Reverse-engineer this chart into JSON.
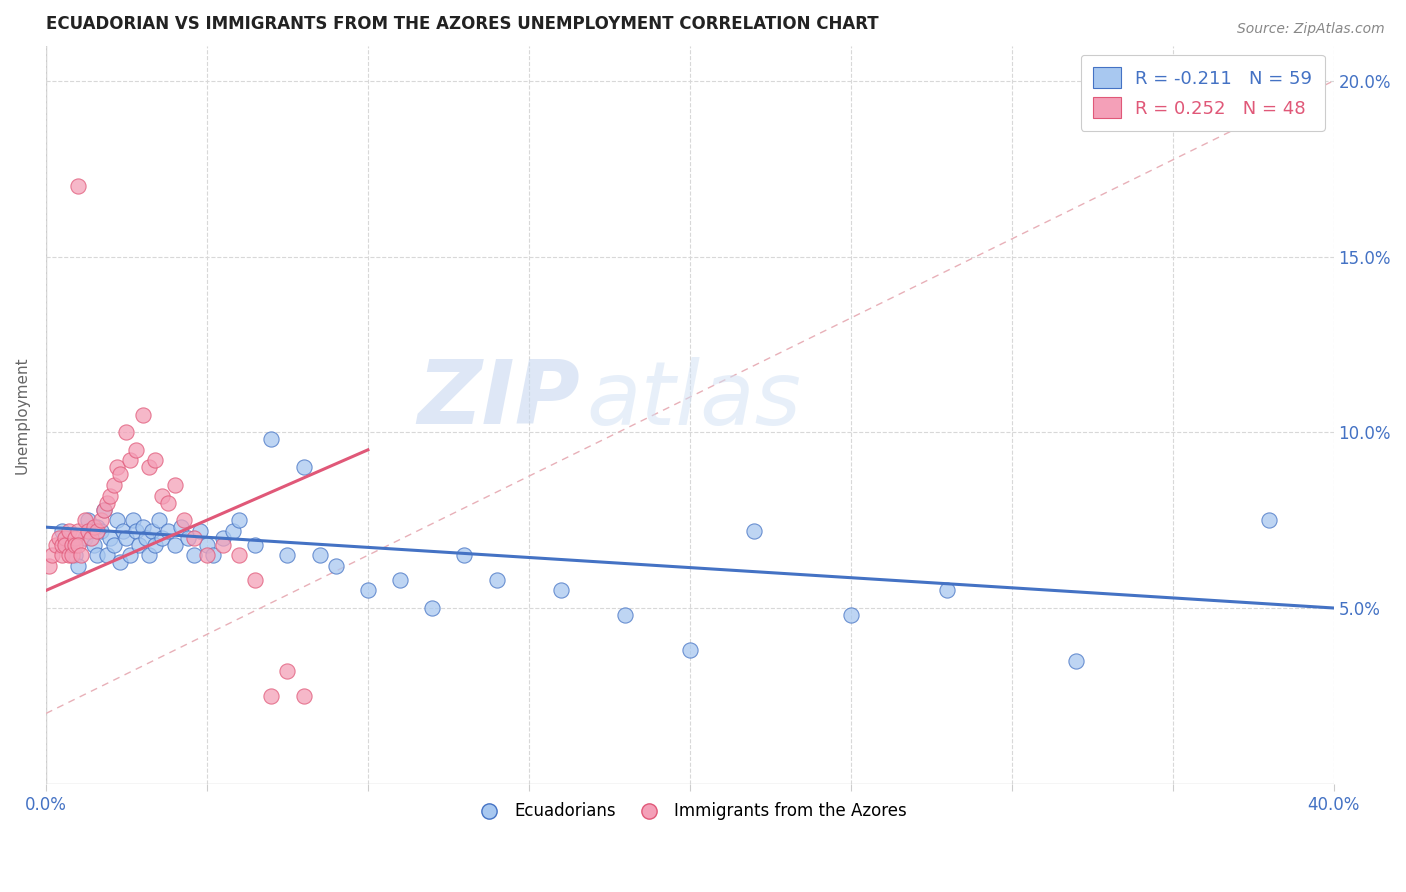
{
  "title": "ECUADORIAN VS IMMIGRANTS FROM THE AZORES UNEMPLOYMENT CORRELATION CHART",
  "source": "Source: ZipAtlas.com",
  "ylabel": "Unemployment",
  "legend_entries": [
    {
      "label": "R = -0.211   N = 59",
      "color": "#a8c8f0"
    },
    {
      "label": "R = 0.252   N = 48",
      "color": "#f4a0b8"
    }
  ],
  "blue_scatter_x": [
    0.005,
    0.007,
    0.009,
    0.01,
    0.012,
    0.013,
    0.015,
    0.016,
    0.016,
    0.017,
    0.018,
    0.019,
    0.02,
    0.021,
    0.022,
    0.023,
    0.024,
    0.025,
    0.026,
    0.027,
    0.028,
    0.029,
    0.03,
    0.031,
    0.032,
    0.033,
    0.034,
    0.035,
    0.036,
    0.038,
    0.04,
    0.042,
    0.044,
    0.046,
    0.048,
    0.05,
    0.052,
    0.055,
    0.058,
    0.06,
    0.065,
    0.07,
    0.075,
    0.08,
    0.085,
    0.09,
    0.1,
    0.11,
    0.12,
    0.13,
    0.14,
    0.16,
    0.18,
    0.2,
    0.22,
    0.25,
    0.28,
    0.32,
    0.38
  ],
  "blue_scatter_y": [
    0.072,
    0.068,
    0.065,
    0.062,
    0.07,
    0.075,
    0.068,
    0.073,
    0.065,
    0.072,
    0.078,
    0.065,
    0.07,
    0.068,
    0.075,
    0.063,
    0.072,
    0.07,
    0.065,
    0.075,
    0.072,
    0.068,
    0.073,
    0.07,
    0.065,
    0.072,
    0.068,
    0.075,
    0.07,
    0.072,
    0.068,
    0.073,
    0.07,
    0.065,
    0.072,
    0.068,
    0.065,
    0.07,
    0.072,
    0.075,
    0.068,
    0.098,
    0.065,
    0.09,
    0.065,
    0.062,
    0.055,
    0.058,
    0.05,
    0.065,
    0.058,
    0.055,
    0.048,
    0.038,
    0.072,
    0.048,
    0.055,
    0.035,
    0.075
  ],
  "pink_scatter_x": [
    0.001,
    0.002,
    0.003,
    0.004,
    0.005,
    0.005,
    0.006,
    0.006,
    0.007,
    0.007,
    0.008,
    0.008,
    0.009,
    0.009,
    0.01,
    0.01,
    0.011,
    0.012,
    0.013,
    0.014,
    0.015,
    0.016,
    0.017,
    0.018,
    0.019,
    0.02,
    0.021,
    0.022,
    0.023,
    0.025,
    0.026,
    0.028,
    0.03,
    0.032,
    0.034,
    0.036,
    0.038,
    0.04,
    0.043,
    0.046,
    0.05,
    0.055,
    0.06,
    0.065,
    0.07,
    0.075,
    0.08,
    0.01
  ],
  "pink_scatter_y": [
    0.062,
    0.065,
    0.068,
    0.07,
    0.065,
    0.068,
    0.07,
    0.068,
    0.065,
    0.072,
    0.068,
    0.065,
    0.07,
    0.068,
    0.072,
    0.068,
    0.065,
    0.075,
    0.072,
    0.07,
    0.073,
    0.072,
    0.075,
    0.078,
    0.08,
    0.082,
    0.085,
    0.09,
    0.088,
    0.1,
    0.092,
    0.095,
    0.105,
    0.09,
    0.092,
    0.082,
    0.08,
    0.085,
    0.075,
    0.07,
    0.065,
    0.068,
    0.065,
    0.058,
    0.025,
    0.032,
    0.025,
    0.17
  ],
  "blue_line_x": [
    0.0,
    0.4
  ],
  "blue_line_y": [
    0.073,
    0.05
  ],
  "pink_line_x": [
    0.0,
    0.1
  ],
  "pink_line_y": [
    0.055,
    0.095
  ],
  "dashed_line_x": [
    0.0,
    0.4
  ],
  "dashed_line_y": [
    0.02,
    0.2
  ],
  "trendline_color_blue": "#4472c4",
  "trendline_color_pink": "#e05878",
  "scatter_color_blue": "#a8c8f0",
  "scatter_color_pink": "#f4a0b8",
  "dashed_line_color": "#e8b0b8",
  "background_color": "#ffffff",
  "watermark_zip": "ZIP",
  "watermark_atlas": "atlas",
  "xmin": 0.0,
  "xmax": 0.4,
  "ymin": 0.0,
  "ymax": 0.21,
  "x_tick_positions": [
    0.0,
    0.05,
    0.1,
    0.15,
    0.2,
    0.25,
    0.3,
    0.35,
    0.4
  ],
  "y_tick_positions": [
    0.05,
    0.1,
    0.15,
    0.2
  ],
  "y_tick_labels": [
    "5.0%",
    "10.0%",
    "15.0%",
    "20.0%"
  ]
}
